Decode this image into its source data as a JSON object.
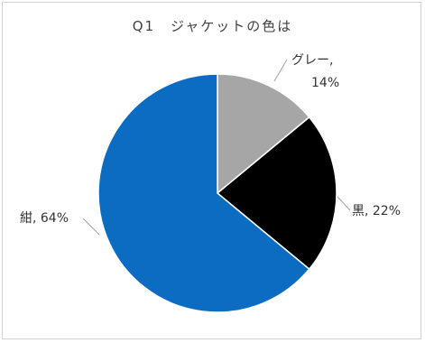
{
  "chart_data": {
    "type": "pie",
    "title": "Q1　ジャケットの色は",
    "slices": [
      {
        "category": "グレー",
        "value": 14,
        "label_line1": "グレー,",
        "label_line2": "14%",
        "color": "#a6a6a6"
      },
      {
        "category": "黒",
        "value": 22,
        "label": "黒, 22%",
        "color": "#000000"
      },
      {
        "category": "紺",
        "value": 64,
        "label": "紺, 64%",
        "color": "#0b6cc2"
      }
    ],
    "legend": "none",
    "data_labels": "outside, category name and percentage"
  }
}
